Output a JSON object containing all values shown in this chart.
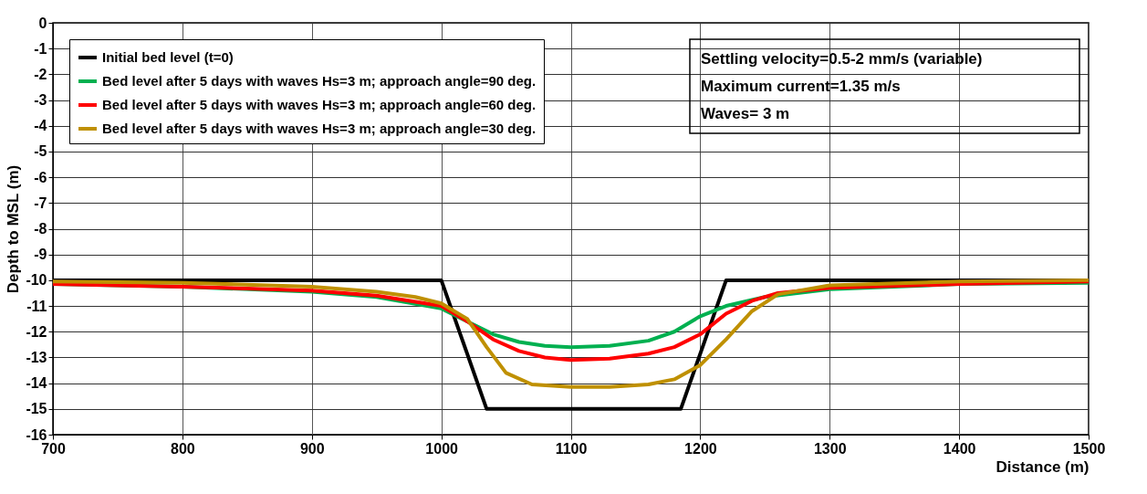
{
  "chart_data": {
    "type": "line",
    "xlabel": "Distance (m)",
    "ylabel": "Depth to MSL (m)",
    "xlim": [
      700,
      1500
    ],
    "xticks": [
      700,
      800,
      900,
      1000,
      1100,
      1200,
      1300,
      1400,
      1500
    ],
    "ylim": [
      -16,
      0
    ],
    "yticks": [
      0,
      -1,
      -2,
      -3,
      -4,
      -5,
      -6,
      -7,
      -8,
      -9,
      -10,
      -11,
      -12,
      -13,
      -14,
      -15,
      -16
    ],
    "grid": true,
    "legend": "top left",
    "marker": "none",
    "line_style": "solid",
    "annotations": [
      "Settling velocity=0.5-2 mm/s (variable)",
      "Maximum current=1.35 m/s",
      "Waves= 3 m"
    ],
    "series": [
      {
        "name": "Initial bed level (t=0)",
        "color": "#000000",
        "x": [
          700,
          1000,
          1035,
          1185,
          1220,
          1500
        ],
        "values": [
          -10,
          -10,
          -15,
          -15,
          -10,
          -10
        ]
      },
      {
        "name": "Bed level after 5 days with waves Hs=3 m; approach angle=90 deg.",
        "color": "#00b050",
        "x": [
          700,
          800,
          900,
          950,
          1000,
          1020,
          1040,
          1060,
          1080,
          1100,
          1130,
          1160,
          1180,
          1200,
          1220,
          1250,
          1300,
          1400,
          1500
        ],
        "values": [
          -10.15,
          -10.25,
          -10.45,
          -10.65,
          -11.1,
          -11.6,
          -12.1,
          -12.4,
          -12.55,
          -12.6,
          -12.55,
          -12.35,
          -12.0,
          -11.4,
          -11.0,
          -10.65,
          -10.35,
          -10.15,
          -10.1
        ]
      },
      {
        "name": "Bed level after 5 days with waves Hs=3 m; approach angle=60 deg.",
        "color": "#ff0000",
        "x": [
          700,
          800,
          900,
          950,
          1000,
          1020,
          1040,
          1060,
          1080,
          1100,
          1130,
          1160,
          1180,
          1200,
          1220,
          1240,
          1260,
          1300,
          1400,
          1500
        ],
        "values": [
          -10.15,
          -10.25,
          -10.4,
          -10.6,
          -11.0,
          -11.6,
          -12.3,
          -12.75,
          -13.0,
          -13.1,
          -13.05,
          -12.85,
          -12.6,
          -12.1,
          -11.3,
          -10.8,
          -10.5,
          -10.3,
          -10.15,
          -10.05
        ]
      },
      {
        "name": "Bed level after 5 days with waves Hs=3 m; approach angle=30 deg.",
        "color": "#bf9000",
        "x": [
          700,
          800,
          900,
          950,
          980,
          1000,
          1020,
          1035,
          1050,
          1070,
          1100,
          1130,
          1160,
          1180,
          1200,
          1220,
          1240,
          1260,
          1300,
          1400,
          1500
        ],
        "values": [
          -10.05,
          -10.1,
          -10.25,
          -10.45,
          -10.65,
          -10.9,
          -11.5,
          -12.6,
          -13.6,
          -14.05,
          -14.15,
          -14.15,
          -14.05,
          -13.85,
          -13.3,
          -12.3,
          -11.2,
          -10.55,
          -10.2,
          -10.05,
          -10.0
        ]
      }
    ]
  }
}
